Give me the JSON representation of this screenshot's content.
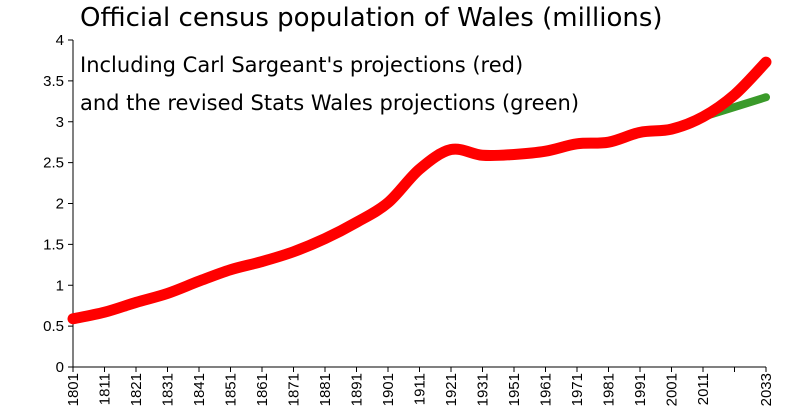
{
  "chart_data": {
    "type": "line",
    "title": "Official census population of Wales (millions)",
    "annotations": [
      "Including Carl Sargeant's projections (red)",
      "and the revised Stats Wales projections (green)"
    ],
    "xlabel": "",
    "ylabel": "",
    "ylim": [
      0,
      4
    ],
    "yticks": [
      0,
      0.5,
      1,
      1.5,
      2,
      2.5,
      3,
      3.5,
      4
    ],
    "xtick_labels": [
      "1801",
      "1811",
      "1821",
      "1831",
      "1841",
      "1851",
      "1861",
      "1871",
      "1881",
      "1891",
      "1901",
      "1911",
      "1921",
      "1931",
      "1951",
      "1961",
      "1971",
      "1981",
      "1991",
      "2001",
      "2011",
      "",
      "2033"
    ],
    "grid": false,
    "series": [
      {
        "color": "#ff0000",
        "x": [
          "1801",
          "1811",
          "1821",
          "1831",
          "1841",
          "1851",
          "1861",
          "1871",
          "1881",
          "1891",
          "1901",
          "1911",
          "1921",
          "1931",
          "1951",
          "1961",
          "1971",
          "1981",
          "1991",
          "2001",
          "2011",
          "",
          "2033"
        ],
        "values": [
          0.59,
          0.67,
          0.79,
          0.9,
          1.05,
          1.19,
          1.29,
          1.41,
          1.57,
          1.77,
          2.01,
          2.42,
          2.66,
          2.59,
          2.6,
          2.64,
          2.73,
          2.75,
          2.87,
          2.91,
          3.06,
          3.33,
          3.73
        ]
      },
      {
        "color": "#3a9a2a",
        "x": [
          "2011",
          "",
          "2033"
        ],
        "values": [
          3.06,
          3.18,
          3.3
        ]
      }
    ]
  }
}
